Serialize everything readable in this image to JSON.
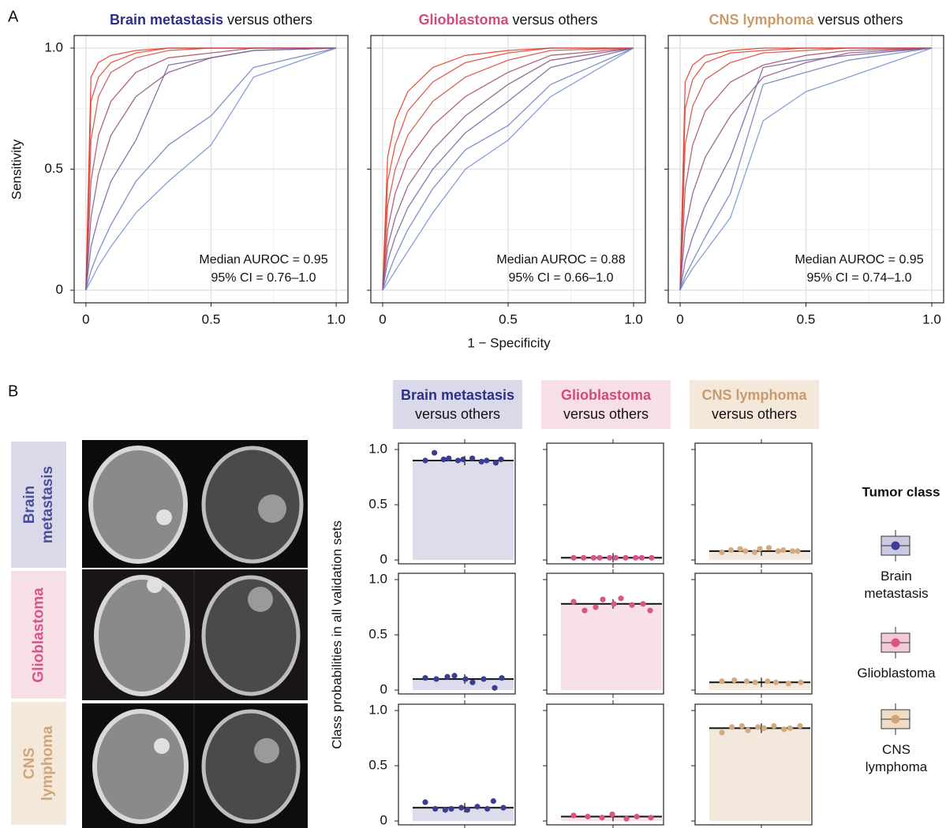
{
  "panel_labels": [
    "A",
    "B"
  ],
  "roc_xlabel": "1 − Specificity",
  "roc_ylabel": "Sensitivity",
  "probability_ylabel": "Class probabilities in all validation sets",
  "column_headers": [
    {
      "name": "Brain metastasis",
      "rest": "versus others",
      "color": "#2b2f8a",
      "fill": "#d9d9ea"
    },
    {
      "name": "Glioblastoma",
      "rest": "versus others",
      "color": "#d24a7e",
      "fill": "#f7dfe6"
    },
    {
      "name": "CNS lymphoma",
      "rest": "versus others",
      "color": "#c99b6a",
      "fill": "#f3e8da"
    }
  ],
  "row_labels": [
    {
      "name": "Brain metastasis",
      "color": "#4a4f9c",
      "fill": "#d9d9ea"
    },
    {
      "name": "Glioblastoma",
      "color": "#d9548a",
      "fill": "#f7dfe6"
    },
    {
      "name": "CNS lymphoma",
      "color": "#d0a678",
      "fill": "#f3e8da"
    }
  ],
  "legend": {
    "title": "Tumor class",
    "entries": [
      {
        "name": "Brain metastasis",
        "color": "#3a3d92",
        "fill": "#c9c9e2"
      },
      {
        "name": "Glioblastoma",
        "color": "#d9548a",
        "fill": "#f3c9d6"
      },
      {
        "name": "CNS lymphoma",
        "color": "#d0a678",
        "fill": "#efdcc6"
      }
    ]
  },
  "chart_data": [
    {
      "type": "line",
      "title": "Brain metastasis",
      "subtitle": "versus others",
      "title_color": "#2b2f8a",
      "x": [
        0,
        0.02,
        0.05,
        0.1,
        0.2,
        0.33,
        0.5,
        0.67,
        1
      ],
      "series": [
        {
          "color": "#e8321e",
          "values": [
            0,
            0.88,
            0.94,
            0.97,
            0.99,
            1,
            1,
            1,
            1
          ]
        },
        {
          "color": "#e0402a",
          "values": [
            0,
            0.78,
            0.88,
            0.94,
            0.98,
            1,
            1,
            1,
            1
          ]
        },
        {
          "color": "#d0463e",
          "values": [
            0,
            0.62,
            0.8,
            0.9,
            0.96,
            0.99,
            1,
            1,
            1
          ]
        },
        {
          "color": "#a84860",
          "values": [
            0,
            0.45,
            0.64,
            0.78,
            0.9,
            0.96,
            0.98,
            1,
            1
          ]
        },
        {
          "color": "#8a5080",
          "values": [
            0,
            0.3,
            0.48,
            0.64,
            0.8,
            0.9,
            0.96,
            0.99,
            1
          ]
        },
        {
          "color": "#7060a0",
          "values": [
            0,
            0.18,
            0.3,
            0.45,
            0.62,
            0.93,
            0.96,
            0.99,
            1
          ]
        },
        {
          "color": "#6a7ec0",
          "values": [
            0,
            0.08,
            0.16,
            0.27,
            0.45,
            0.6,
            0.72,
            0.92,
            1
          ]
        },
        {
          "color": "#7090d0",
          "values": [
            0,
            0.04,
            0.1,
            0.18,
            0.32,
            0.45,
            0.6,
            0.88,
            1
          ]
        }
      ],
      "xlim": [
        -0.047,
        1.047
      ],
      "ylim": [
        -0.052,
        1.052
      ],
      "xticks": [
        0,
        0.5,
        {
          "value": 1,
          "label": "1.0"
        }
      ],
      "yticks": [
        0,
        0.5,
        {
          "value": 1,
          "label": "1.0"
        }
      ],
      "minor_ticks": [
        0.25,
        0.75
      ],
      "grid": true,
      "ytick_labels": true,
      "annotations": [
        "Median AUROC = 0.95",
        "95% CI = 0.76–1.0"
      ]
    },
    {
      "type": "line",
      "title": "Glioblastoma",
      "subtitle": "versus others",
      "title_color": "#d24a7e",
      "x": [
        0,
        0.02,
        0.05,
        0.1,
        0.2,
        0.33,
        0.5,
        0.67,
        1
      ],
      "series": [
        {
          "color": "#e8321e",
          "values": [
            0,
            0.55,
            0.7,
            0.82,
            0.92,
            0.97,
            0.99,
            1,
            1
          ]
        },
        {
          "color": "#e0402a",
          "values": [
            0,
            0.45,
            0.6,
            0.74,
            0.86,
            0.94,
            0.98,
            1,
            1
          ]
        },
        {
          "color": "#d0463e",
          "values": [
            0,
            0.35,
            0.5,
            0.64,
            0.78,
            0.88,
            0.95,
            0.99,
            1
          ]
        },
        {
          "color": "#a84860",
          "values": [
            0,
            0.25,
            0.4,
            0.54,
            0.68,
            0.8,
            0.9,
            0.97,
            1
          ]
        },
        {
          "color": "#8a5080",
          "values": [
            0,
            0.18,
            0.3,
            0.43,
            0.58,
            0.72,
            0.85,
            0.95,
            1
          ]
        },
        {
          "color": "#7060a0",
          "values": [
            0,
            0.12,
            0.22,
            0.34,
            0.5,
            0.65,
            0.78,
            0.92,
            1
          ]
        },
        {
          "color": "#6a7ec0",
          "values": [
            0,
            0.06,
            0.14,
            0.25,
            0.42,
            0.58,
            0.68,
            0.85,
            1
          ]
        },
        {
          "color": "#7090d0",
          "values": [
            0,
            0.03,
            0.08,
            0.16,
            0.32,
            0.5,
            0.62,
            0.8,
            1
          ]
        }
      ],
      "xlim": [
        -0.047,
        1.047
      ],
      "ylim": [
        -0.052,
        1.052
      ],
      "xticks": [
        0,
        0.5,
        {
          "value": 1,
          "label": "1.0"
        }
      ],
      "yticks": [
        0,
        0.5,
        1
      ],
      "minor_ticks": [
        0.25,
        0.75
      ],
      "grid": true,
      "ytick_labels": false,
      "annotations": [
        "Median AUROC = 0.88",
        "95% CI = 0.66–1.0"
      ]
    },
    {
      "type": "line",
      "title": "CNS lymphoma",
      "subtitle": "versus others",
      "title_color": "#c99b6a",
      "x": [
        0,
        0.02,
        0.05,
        0.1,
        0.2,
        0.33,
        0.5,
        0.67,
        1
      ],
      "series": [
        {
          "color": "#e8321e",
          "values": [
            0,
            0.86,
            0.93,
            0.97,
            0.99,
            1,
            1,
            1,
            1
          ]
        },
        {
          "color": "#e0402a",
          "values": [
            0,
            0.75,
            0.87,
            0.94,
            0.98,
            0.99,
            1,
            1,
            1
          ]
        },
        {
          "color": "#d0463e",
          "values": [
            0,
            0.6,
            0.76,
            0.87,
            0.94,
            0.98,
            0.99,
            1,
            1
          ]
        },
        {
          "color": "#a84860",
          "values": [
            0,
            0.42,
            0.6,
            0.74,
            0.86,
            0.93,
            0.97,
            0.99,
            1
          ]
        },
        {
          "color": "#8a5080",
          "values": [
            0,
            0.25,
            0.4,
            0.55,
            0.72,
            0.88,
            0.94,
            0.98,
            1
          ]
        },
        {
          "color": "#7060a0",
          "values": [
            0,
            0.12,
            0.22,
            0.35,
            0.55,
            0.92,
            0.95,
            0.97,
            1
          ]
        },
        {
          "color": "#6a7ec0",
          "values": [
            0,
            0.06,
            0.12,
            0.22,
            0.4,
            0.85,
            0.9,
            0.95,
            1
          ]
        },
        {
          "color": "#7090d0",
          "values": [
            0,
            0.04,
            0.09,
            0.16,
            0.3,
            0.7,
            0.82,
            0.88,
            1
          ]
        }
      ],
      "xlim": [
        -0.047,
        1.047
      ],
      "ylim": [
        -0.052,
        1.052
      ],
      "xticks": [
        0,
        0.5,
        {
          "value": 1,
          "label": "1.0"
        }
      ],
      "yticks": [
        0,
        0.5,
        1
      ],
      "minor_ticks": [
        0.25,
        0.75
      ],
      "grid": true,
      "ytick_labels": false,
      "annotations": [
        "Median AUROC = 0.95",
        "95% CI = 0.74–1.0"
      ]
    },
    {
      "type": "bar",
      "value": 0.9,
      "points": [
        0.9,
        0.97,
        0.91,
        0.92,
        0.9,
        0.91,
        0.92,
        0.89,
        0.9,
        0.88,
        0.91
      ],
      "color": "#3a3d92",
      "fill": "#dcdced",
      "ylim": [
        -0.035,
        1.057
      ],
      "yticks": [
        0,
        0.5,
        {
          "value": 1,
          "label": "1.0"
        }
      ],
      "ytick_labels": true
    },
    {
      "type": "bar",
      "value": 0.02,
      "points": [
        0.02,
        0.02,
        0.02,
        0.02,
        0.02,
        0.02,
        0.02,
        0.02,
        0.02,
        0.02
      ],
      "color": "#d9548a",
      "fill": "#f7e0e6",
      "ylim": [
        -0.035,
        1.057
      ],
      "yticks": [
        0,
        0.5,
        1
      ],
      "ytick_labels": false
    },
    {
      "type": "bar",
      "value": 0.08,
      "points": [
        0.07,
        0.09,
        0.1,
        0.08,
        0.07,
        0.1,
        0.11,
        0.08,
        0.09,
        0.08,
        0.08
      ],
      "color": "#d4aa80",
      "fill": "#f3e8dc",
      "ylim": [
        -0.035,
        1.057
      ],
      "yticks": [
        0,
        0.5,
        1
      ],
      "ytick_labels": false
    },
    {
      "type": "bar",
      "value": 0.1,
      "points": [
        0.11,
        0.1,
        0.12,
        0.13,
        0.1,
        0.07,
        0.1,
        0.02,
        0.11
      ],
      "color": "#3a3d92",
      "fill": "#dcdced",
      "ylim": [
        -0.035,
        1.057
      ],
      "yticks": [
        0,
        0.5,
        {
          "value": 1,
          "label": "1.0"
        }
      ],
      "ytick_labels": true
    },
    {
      "type": "bar",
      "value": 0.78,
      "points": [
        0.8,
        0.72,
        0.75,
        0.82,
        0.78,
        0.83,
        0.77,
        0.78,
        0.72
      ],
      "color": "#d9548a",
      "fill": "#f7e0e6",
      "ylim": [
        -0.035,
        1.057
      ],
      "yticks": [
        0,
        0.5,
        1
      ],
      "ytick_labels": false
    },
    {
      "type": "bar",
      "value": 0.07,
      "points": [
        0.08,
        0.09,
        0.08,
        0.07,
        0.08,
        0.07,
        0.06,
        0.07
      ],
      "color": "#d4aa80",
      "fill": "#f3e8dc",
      "ylim": [
        -0.035,
        1.057
      ],
      "yticks": [
        0,
        0.5,
        1
      ],
      "ytick_labels": false
    },
    {
      "type": "bar",
      "value": 0.12,
      "points": [
        0.17,
        0.11,
        0.1,
        0.11,
        0.12,
        0.1,
        0.13,
        0.11,
        0.18,
        0.12
      ],
      "color": "#3a3d92",
      "fill": "#dcdced",
      "ylim": [
        -0.035,
        1.057
      ],
      "yticks": [
        0,
        0.5,
        {
          "value": 1,
          "label": "1.0"
        }
      ],
      "ytick_labels": true
    },
    {
      "type": "bar",
      "value": 0.04,
      "points": [
        0.05,
        0.04,
        0.03,
        0.06,
        0.02,
        0.04,
        0.03
      ],
      "color": "#d9548a",
      "fill": "#f7e0e6",
      "ylim": [
        -0.035,
        1.057
      ],
      "yticks": [
        0,
        0.5,
        1
      ],
      "ytick_labels": false
    },
    {
      "type": "bar",
      "value": 0.84,
      "points": [
        0.8,
        0.85,
        0.86,
        0.82,
        0.85,
        0.84,
        0.86,
        0.83,
        0.84,
        0.86
      ],
      "color": "#d4aa80",
      "fill": "#f3e8dc",
      "ylim": [
        -0.035,
        1.057
      ],
      "yticks": [
        0,
        0.5,
        1
      ],
      "ytick_labels": false
    }
  ]
}
